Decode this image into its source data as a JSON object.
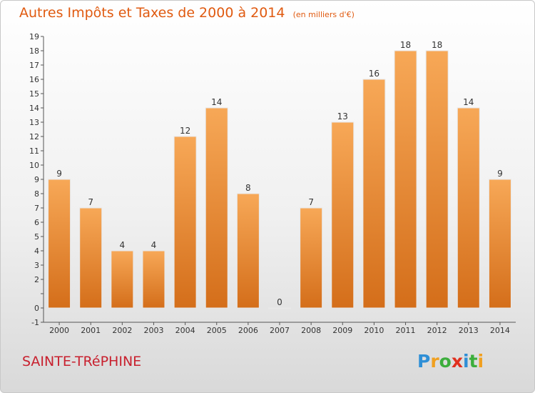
{
  "header": {
    "title": "Autres Impôts et Taxes de 2000 à 2014",
    "unit_note": "(en milliers d'€)"
  },
  "footer": {
    "commune": "SAINTE-TRéPHINE",
    "logo_text": "Proxiti"
  },
  "colors": {
    "title": "#e05a10",
    "commune": "#c8202e",
    "bar_top": "#f7a857",
    "bar_bottom": "#d46e1a"
  },
  "chart_data": {
    "type": "bar",
    "title": "Autres Impôts et Taxes de 2000 à 2014",
    "subtitle": "(en milliers d'€)",
    "categories": [
      "2000",
      "2001",
      "2002",
      "2003",
      "2004",
      "2005",
      "2006",
      "2007",
      "2008",
      "2009",
      "2010",
      "2011",
      "2012",
      "2013",
      "2014"
    ],
    "values": [
      9,
      7,
      4,
      4,
      12,
      14,
      8,
      0,
      7,
      13,
      16,
      18,
      18,
      14,
      9
    ],
    "yticks": [
      "-1",
      "0",
      "",
      "2",
      "3",
      "4",
      "5",
      "6",
      "7",
      "8",
      "9",
      "10",
      "11",
      "12",
      "13",
      "14",
      "15",
      "16",
      "17",
      "18",
      "19"
    ],
    "ylim": [
      -1,
      19
    ],
    "grid": false,
    "legend": "none"
  }
}
